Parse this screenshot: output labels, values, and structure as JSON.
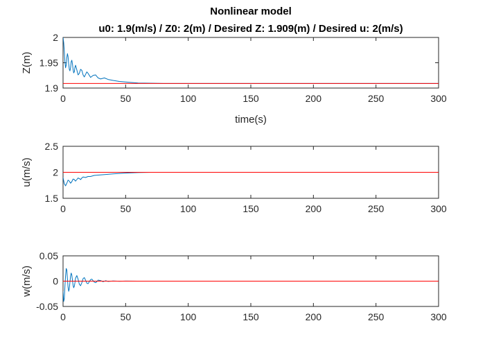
{
  "figure": {
    "title": "Nonlinear model",
    "subtitle": "u0: 1.9(m/s) / Z0: 2(m) / Desired Z: 1.909(m) / Desired u: 2(m/s)"
  },
  "colors": {
    "response": "#0072BD",
    "reference": "#FF0000"
  },
  "chart_data": [
    {
      "type": "line",
      "ylabel": "Z(m)",
      "xlabel": "time(s)",
      "xlim": [
        0,
        300
      ],
      "ylim": [
        1.9,
        2.0
      ],
      "xticks": [
        "0",
        "50",
        "100",
        "150",
        "200",
        "250",
        "300"
      ],
      "yticks": [
        "1.9",
        "1.95",
        "2"
      ],
      "series": [
        {
          "role": "response",
          "x": [
            0,
            0.5,
            1,
            1.5,
            2,
            2.5,
            3,
            3.5,
            4,
            4.5,
            5,
            5.5,
            6,
            6.5,
            7,
            7.5,
            8,
            8.5,
            9,
            9.5,
            10,
            11,
            12,
            13,
            14,
            15,
            16,
            17,
            18,
            19,
            20,
            22,
            24,
            26,
            28,
            30,
            33,
            36,
            40,
            45,
            50,
            55,
            60,
            70,
            80,
            90,
            100,
            120,
            150,
            200,
            250,
            300
          ],
          "y": [
            2.0,
            1.99,
            1.973,
            1.952,
            1.94,
            1.945,
            1.96,
            1.968,
            1.962,
            1.948,
            1.937,
            1.934,
            1.94,
            1.952,
            1.955,
            1.948,
            1.937,
            1.93,
            1.932,
            1.941,
            1.945,
            1.936,
            1.926,
            1.929,
            1.937,
            1.935,
            1.926,
            1.922,
            1.927,
            1.932,
            1.929,
            1.921,
            1.925,
            1.926,
            1.92,
            1.918,
            1.92,
            1.917,
            1.915,
            1.913,
            1.912,
            1.911,
            1.91,
            1.9095,
            1.909,
            1.909,
            1.909,
            1.909,
            1.909,
            1.909,
            1.909,
            1.909
          ]
        },
        {
          "role": "reference",
          "x": [
            0,
            300
          ],
          "y": [
            1.909,
            1.909
          ]
        }
      ]
    },
    {
      "type": "line",
      "ylabel": "u(m/s)",
      "xlabel": "",
      "xlim": [
        0,
        300
      ],
      "ylim": [
        1.5,
        2.5
      ],
      "xticks": [
        "0",
        "50",
        "100",
        "150",
        "200",
        "250",
        "300"
      ],
      "yticks": [
        "1.5",
        "2",
        "2.5"
      ],
      "series": [
        {
          "role": "response",
          "x": [
            0,
            1,
            2,
            3,
            4,
            5,
            6,
            7,
            8,
            9,
            10,
            11,
            12,
            13,
            14,
            15,
            16,
            18,
            20,
            22,
            25,
            30,
            35,
            40,
            50,
            60,
            70,
            80,
            100,
            150,
            200,
            250,
            300
          ],
          "y": [
            1.9,
            1.78,
            1.74,
            1.79,
            1.85,
            1.83,
            1.79,
            1.82,
            1.87,
            1.86,
            1.83,
            1.86,
            1.89,
            1.88,
            1.86,
            1.89,
            1.91,
            1.9,
            1.92,
            1.92,
            1.94,
            1.95,
            1.96,
            1.97,
            1.985,
            1.995,
            2.0,
            2.0,
            2.0,
            2.0,
            2.0,
            2.0,
            2.0
          ]
        },
        {
          "role": "reference",
          "x": [
            0,
            300
          ],
          "y": [
            2.0,
            2.0
          ]
        }
      ]
    },
    {
      "type": "line",
      "ylabel": "w(m/s)",
      "xlabel": "",
      "xlim": [
        0,
        300
      ],
      "ylim": [
        -0.05,
        0.05
      ],
      "xticks": [
        "0",
        "50",
        "100",
        "150",
        "200",
        "250",
        "300"
      ],
      "yticks": [
        "-0.05",
        "0",
        "0.05"
      ],
      "series": [
        {
          "role": "response",
          "x": [
            0,
            0.5,
            1,
            1.5,
            2,
            2.5,
            3,
            3.5,
            4,
            4.5,
            5,
            5.5,
            6,
            6.5,
            7,
            7.5,
            8,
            8.5,
            9,
            9.5,
            10,
            11,
            12,
            13,
            14,
            15,
            16,
            17,
            18,
            19,
            20,
            21,
            22,
            23,
            24,
            25,
            26,
            27,
            28,
            30,
            32,
            34,
            36,
            40,
            45,
            50,
            60,
            80,
            100,
            150,
            200,
            250,
            300
          ],
          "y": [
            -0.02,
            -0.04,
            -0.035,
            -0.01,
            0.01,
            0.025,
            0.022,
            0.005,
            -0.012,
            -0.02,
            -0.015,
            -0.002,
            0.01,
            0.016,
            0.012,
            0.002,
            -0.008,
            -0.013,
            -0.01,
            -0.003,
            0.006,
            0.011,
            0.004,
            -0.006,
            -0.009,
            -0.003,
            0.005,
            0.007,
            0.002,
            -0.004,
            -0.005,
            -0.001,
            0.003,
            0.004,
            0.001,
            -0.002,
            -0.003,
            -0.001,
            0.002,
            0.001,
            -0.001,
            0.0008,
            -0.0005,
            0.0003,
            -0.0002,
            0.0001,
            0,
            0,
            0,
            0,
            0,
            0,
            0
          ]
        },
        {
          "role": "reference",
          "x": [
            0,
            300
          ],
          "y": [
            0,
            0
          ]
        }
      ]
    }
  ]
}
